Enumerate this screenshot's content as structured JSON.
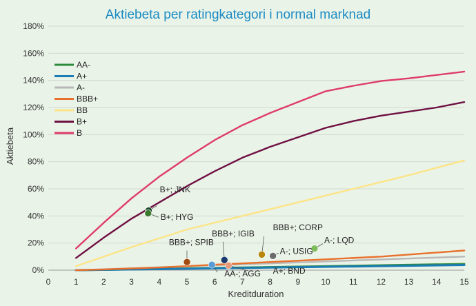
{
  "chart_data": {
    "type": "line",
    "title": "Aktiebeta per ratingkategori i normal marknad",
    "xlabel": "Kreditduration",
    "ylabel": "Aktiebeta",
    "xlim": [
      0,
      15
    ],
    "ylim": [
      0,
      180
    ],
    "x_ticks": [
      0,
      1,
      2,
      3,
      4,
      5,
      6,
      7,
      8,
      9,
      10,
      11,
      12,
      13,
      14,
      15
    ],
    "y_ticks": [
      0,
      20,
      40,
      60,
      80,
      100,
      120,
      140,
      160,
      180
    ],
    "y_unit": "%",
    "grid": "horizontal",
    "legend_position": "left",
    "series": [
      {
        "name": "AA-",
        "color": "#2e8b3a",
        "x": [
          1,
          15
        ],
        "y": [
          0,
          4.5
        ]
      },
      {
        "name": "A+",
        "color": "#1b7bb5",
        "x": [
          1,
          15
        ],
        "y": [
          0,
          3.8
        ]
      },
      {
        "name": "A-",
        "color": "#b8b8b8",
        "x": [
          1,
          15
        ],
        "y": [
          0,
          10
        ]
      },
      {
        "name": "BBB+",
        "color": "#e8702a",
        "x": [
          1,
          2,
          4,
          6,
          8,
          10,
          12,
          15
        ],
        "y": [
          0,
          0.5,
          2,
          4,
          6,
          8,
          10,
          14.5
        ]
      },
      {
        "name": "BB",
        "color": "#fce487",
        "x": [
          1,
          3,
          5,
          7,
          9,
          11,
          13,
          15
        ],
        "y": [
          3,
          17,
          30,
          40,
          50,
          60,
          70,
          81
        ]
      },
      {
        "name": "B+",
        "color": "#6e0f42",
        "x": [
          1,
          2,
          3,
          4,
          5,
          6,
          7,
          8,
          9,
          10,
          11,
          12,
          13,
          14,
          15
        ],
        "y": [
          9,
          24,
          38,
          50,
          62,
          73,
          83,
          91,
          98,
          105,
          110,
          114,
          117,
          120,
          124
        ]
      },
      {
        "name": "B",
        "color": "#de3b6b",
        "x": [
          1,
          2,
          3,
          4,
          5,
          6,
          7,
          8,
          9,
          10,
          11,
          12,
          13,
          14,
          15
        ],
        "y": [
          16,
          35,
          53,
          69,
          83,
          96,
          107,
          116,
          124,
          132,
          136,
          139.5,
          141.5,
          144,
          146.5
        ]
      }
    ],
    "points": [
      {
        "label": "B+; JNK",
        "x": 3.62,
        "y": 44,
        "color": "#1e4a2c"
      },
      {
        "label": "B+; HYG",
        "x": 3.6,
        "y": 42,
        "color": "#3b7a2e"
      },
      {
        "label": "BBB+; SPIB",
        "x": 5.0,
        "y": 6,
        "color": "#a34c12"
      },
      {
        "label": "BBB+; IGIB",
        "x": 6.35,
        "y": 7.5,
        "color": "#1a3b6b"
      },
      {
        "label": "BBB+; CORP",
        "x": 7.7,
        "y": 11.5,
        "color": "#b8860b"
      },
      {
        "label": "A-; USIG",
        "x": 8.1,
        "y": 10.5,
        "color": "#6b6b6b"
      },
      {
        "label": "A-; LQD",
        "x": 9.6,
        "y": 16,
        "color": "#7dbd5a"
      },
      {
        "label": "AA-; AGG",
        "x": 5.9,
        "y": 4,
        "color": "#5b9bd5"
      },
      {
        "label": "A+; BND",
        "x": 6.5,
        "y": 3.5,
        "color": "#e59a7a"
      }
    ]
  },
  "labels": [
    {
      "text": "B+; JNK",
      "tx": 4.02,
      "ty": 57.5,
      "lx": 3.92,
      "ly": 47.5
    },
    {
      "text": "B+; HYG",
      "tx": 4.05,
      "ty": 37,
      "lx": 3.97,
      "ly": 39
    },
    {
      "text": "BBB+; SPIB",
      "tx": 4.35,
      "ty": 18.5,
      "lx": 5.0,
      "ly": 14.5
    },
    {
      "text": "BBB+; IGIB",
      "tx": 5.9,
      "ty": 25,
      "lx": 6.3,
      "ly": 21
    },
    {
      "text": "BBB+; CORP",
      "tx": 8.1,
      "ty": 29.5,
      "lx": 7.78,
      "ly": 25
    },
    {
      "text": "A-; USIG",
      "tx": 8.35,
      "ty": 12,
      "lx": 8.3,
      "ly": 12.5
    },
    {
      "text": "A-; LQD",
      "tx": 9.95,
      "ty": 20,
      "lx": 9.9,
      "ly": 19.5
    },
    {
      "text": "AA-; AGG",
      "tx": 6.35,
      "ty": -4.5,
      "lx": 6.1,
      "ly": -1.5
    },
    {
      "text": "A+; BND",
      "tx": 8.1,
      "ty": -2.5,
      "lx": 7.2,
      "ly": -0.5
    }
  ]
}
